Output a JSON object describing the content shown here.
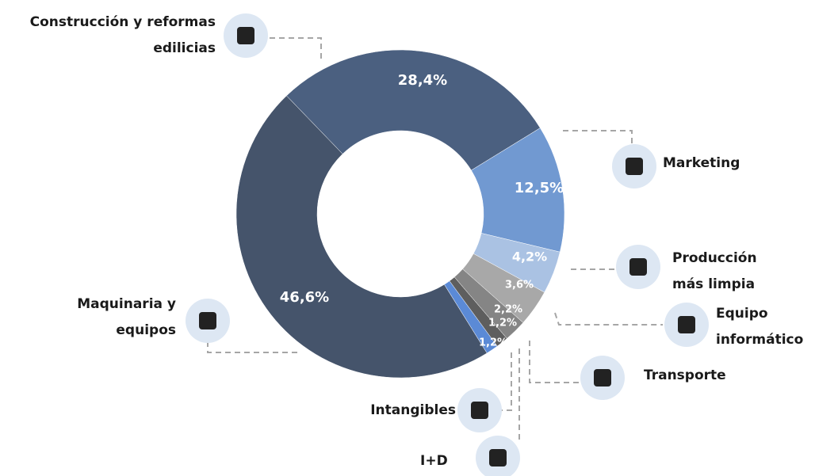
{
  "chart_data": {
    "type": "donut",
    "categories": [
      "Construcción y reformas edilicias",
      "Marketing",
      "Producción más limpia",
      "Equipo informático",
      "Transporte",
      "I+D",
      "Intangibles",
      "Maquinaria y equipos"
    ],
    "values": [
      28.4,
      12.5,
      4.2,
      3.6,
      2.2,
      1.2,
      1.2,
      46.6
    ],
    "value_labels": [
      "28,4%",
      "12,5%",
      "4,2%",
      "3,6%",
      "2,2%",
      "1,2%",
      "1,2%",
      "46,6%"
    ],
    "colors": [
      "#4b6080",
      "#7199d1",
      "#aac2e3",
      "#a8a8a8",
      "#858585",
      "#5e5e5e",
      "#5b8ad6",
      "#45546b"
    ]
  }
}
